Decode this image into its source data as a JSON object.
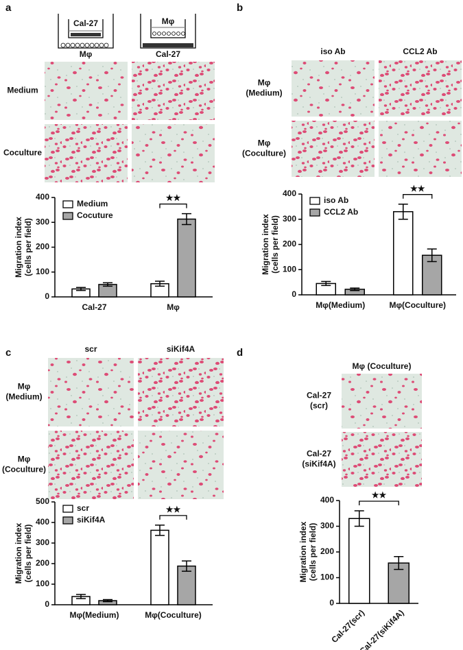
{
  "panels": [
    {
      "label": "a",
      "schematic": [
        "Cal-27",
        "Mφ",
        "Mφ",
        "Cal-27"
      ],
      "row_labels": [
        [
          "Medium"
        ],
        [
          "Coculture"
        ]
      ]
    },
    {
      "label": "b",
      "col_labels": [
        "iso Ab",
        "CCL2 Ab"
      ],
      "row_labels": [
        [
          "Mφ",
          "(Medium)"
        ],
        [
          "Mφ",
          "(Coculture)"
        ]
      ]
    },
    {
      "label": "c",
      "col_labels": [
        "scr",
        "siKif4A"
      ],
      "row_labels": [
        [
          "Mφ",
          "(Medium)"
        ],
        [
          "Mφ",
          "(Coculture)"
        ]
      ]
    },
    {
      "label": "d",
      "col_labels": [
        "Mφ (Coculture)"
      ],
      "row_labels": [
        [
          "Cal-27",
          "(scr)"
        ],
        [
          "Cal-27",
          "(siKif4A)"
        ]
      ]
    }
  ],
  "chart_data": [
    {
      "type": "bar",
      "y_label": [
        "Migration index",
        "(cells per field)"
      ],
      "categories": [
        "Cal-27",
        "Mφ"
      ],
      "series": [
        {
          "name": "Medium",
          "color": "#ffffff",
          "values": [
            32,
            53
          ],
          "errors": [
            6,
            10
          ]
        },
        {
          "name": "Cocuture",
          "color": "#a6a6a6",
          "values": [
            50,
            313
          ],
          "errors": [
            7,
            22
          ]
        }
      ],
      "ylim": [
        0,
        400
      ],
      "yticks": [
        0,
        100,
        200,
        300,
        400
      ],
      "legend": "upper left",
      "annotation": "★★"
    },
    {
      "type": "bar",
      "y_label": [
        "Migration index",
        "(cells per field)"
      ],
      "categories": [
        "Mφ(Medium)",
        "Mφ(Coculture)"
      ],
      "series": [
        {
          "name": "iso Ab",
          "color": "#ffffff",
          "values": [
            45,
            330
          ],
          "errors": [
            8,
            30
          ]
        },
        {
          "name": "CCL2 Ab",
          "color": "#a6a6a6",
          "values": [
            22,
            157
          ],
          "errors": [
            5,
            25
          ]
        }
      ],
      "ylim": [
        0,
        400
      ],
      "yticks": [
        0,
        100,
        200,
        300,
        400
      ],
      "legend": "upper left",
      "annotation": "★★"
    },
    {
      "type": "bar",
      "y_label": [
        "Migration index",
        "(cells per field)"
      ],
      "categories": [
        "Mφ(Medium)",
        "Mφ(Coculture)"
      ],
      "series": [
        {
          "name": "scr",
          "color": "#ffffff",
          "values": [
            40,
            362
          ],
          "errors": [
            10,
            25
          ]
        },
        {
          "name": "siKif4A",
          "color": "#a6a6a6",
          "values": [
            20,
            188
          ],
          "errors": [
            5,
            25
          ]
        }
      ],
      "ylim": [
        0,
        500
      ],
      "yticks": [
        0,
        100,
        200,
        300,
        400,
        500
      ],
      "legend": "upper left",
      "annotation": "★★"
    },
    {
      "type": "bar",
      "y_label": [
        "Migration index",
        "(cells per field)"
      ],
      "categories": [
        "Cal-27(scr)",
        "Cal-27(siKif4A)"
      ],
      "series": [
        {
          "colors": [
            "#ffffff",
            "#a6a6a6"
          ],
          "values": [
            330,
            157
          ],
          "errors": [
            30,
            25
          ]
        }
      ],
      "ylim": [
        0,
        400
      ],
      "yticks": [
        0,
        100,
        200,
        300,
        400
      ],
      "annotation": "★★"
    }
  ]
}
